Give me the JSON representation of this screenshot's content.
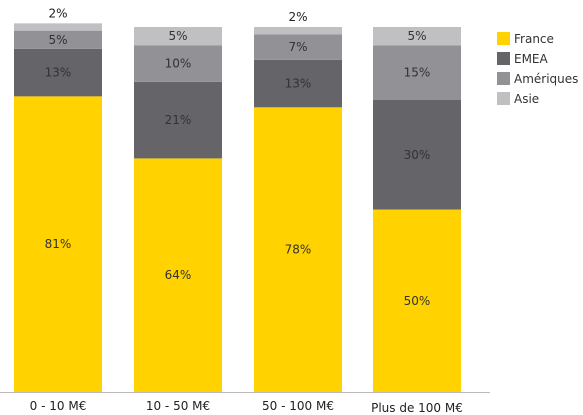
{
  "chart_data": {
    "type": "bar",
    "stacked": true,
    "categories": [
      "0 - 10 M€",
      "10 - 50 M€",
      "50 - 100 M€",
      "Plus de 100 M€"
    ],
    "series": [
      {
        "name": "France",
        "color": "#FFD200",
        "values": [
          81,
          64,
          78,
          50
        ]
      },
      {
        "name": "EMEA",
        "color": "#646469",
        "values": [
          13,
          21,
          13,
          30
        ]
      },
      {
        "name": "Amériques",
        "color": "#919196",
        "values": [
          5,
          10,
          7,
          15
        ]
      },
      {
        "name": "Asie",
        "color": "#C0C0C3",
        "values": [
          2,
          5,
          2,
          5
        ]
      }
    ],
    "value_labels": [
      [
        "81%",
        "13%",
        "5%",
        "2%"
      ],
      [
        "64%",
        "21%",
        "10%",
        "5%"
      ],
      [
        "78%",
        "13%",
        "7%",
        "2%"
      ],
      [
        "50%",
        "30%",
        "15%",
        "5%"
      ]
    ],
    "ylim": [
      0,
      100
    ],
    "legend_position": "right",
    "grid": false
  }
}
